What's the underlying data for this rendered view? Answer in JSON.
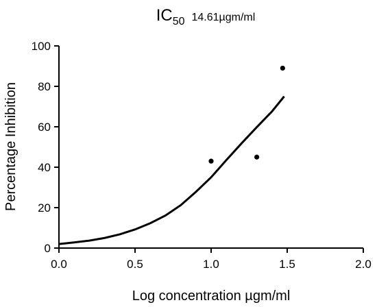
{
  "chart_data": {
    "type": "scatter",
    "title": {
      "main": "IC",
      "subscript": "50",
      "value": "14.61µgm/ml"
    },
    "xlabel": "Log concentration µgm/ml",
    "ylabel": "Percentage Inhibition",
    "xlim": [
      0.0,
      2.0
    ],
    "ylim": [
      0,
      100
    ],
    "x_ticks": [
      "0.0",
      "0.5",
      "1.0",
      "1.5",
      "2.0"
    ],
    "y_ticks": [
      "0",
      "20",
      "40",
      "60",
      "80",
      "100"
    ],
    "grid": false,
    "series": [
      {
        "points": [
          {
            "x": 1.0,
            "y": 43
          },
          {
            "x": 1.3,
            "y": 45
          },
          {
            "x": 1.47,
            "y": 89
          }
        ]
      }
    ],
    "fit_curve": {
      "x": [
        0.0,
        0.1,
        0.2,
        0.3,
        0.4,
        0.5,
        0.6,
        0.7,
        0.8,
        0.9,
        1.0,
        1.1,
        1.2,
        1.3,
        1.4,
        1.48
      ],
      "y": [
        2.0,
        2.8,
        3.7,
        5.0,
        6.8,
        9.2,
        12.3,
        16.1,
        21.2,
        27.8,
        35.0,
        43.5,
        51.8,
        59.8,
        67.6,
        75.0
      ]
    }
  }
}
